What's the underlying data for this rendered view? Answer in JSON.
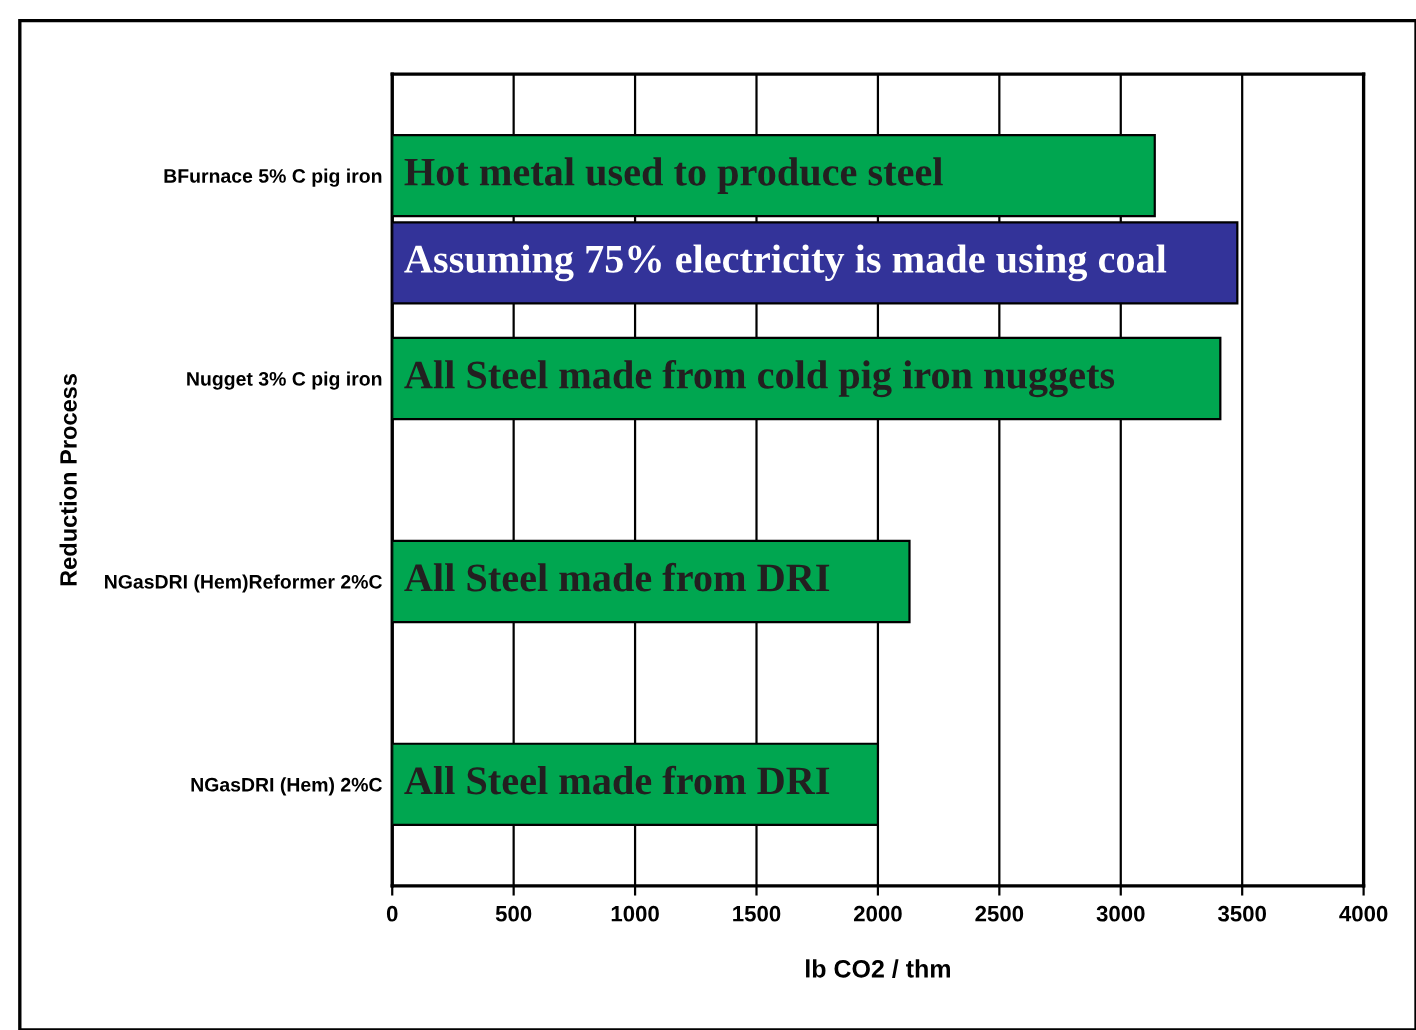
{
  "chart_data": {
    "type": "bar",
    "orientation": "horizontal",
    "categories": [
      "BFurnace 5% C pig iron",
      "Nugget 3% C pig iron",
      "NGasDRI (Hem)Reformer 2%C",
      "NGasDRI (Hem) 2%C"
    ],
    "series": [
      {
        "color": "#00a650",
        "values": [
          3140,
          3410,
          2130,
          2000
        ],
        "value_labels": [
          "Hot metal used to produce steel",
          "All Steel made from cold pig iron nuggets",
          "All Steel made from DRI",
          "All Steel made from DRI"
        ]
      },
      {
        "color": "#333399",
        "values": [
          3480,
          null,
          null,
          null
        ],
        "value_labels": [
          "Assuming 75% electricity is made using coal",
          null,
          null,
          null
        ]
      }
    ],
    "xlabel": "lb CO2 / thm",
    "ylabel": "Reduction Process",
    "xlim": [
      0,
      4000
    ],
    "xticks": [
      0,
      500,
      1000,
      1500,
      2000,
      2500,
      3000,
      3500,
      4000
    ],
    "grid": "x",
    "legend": false
  }
}
